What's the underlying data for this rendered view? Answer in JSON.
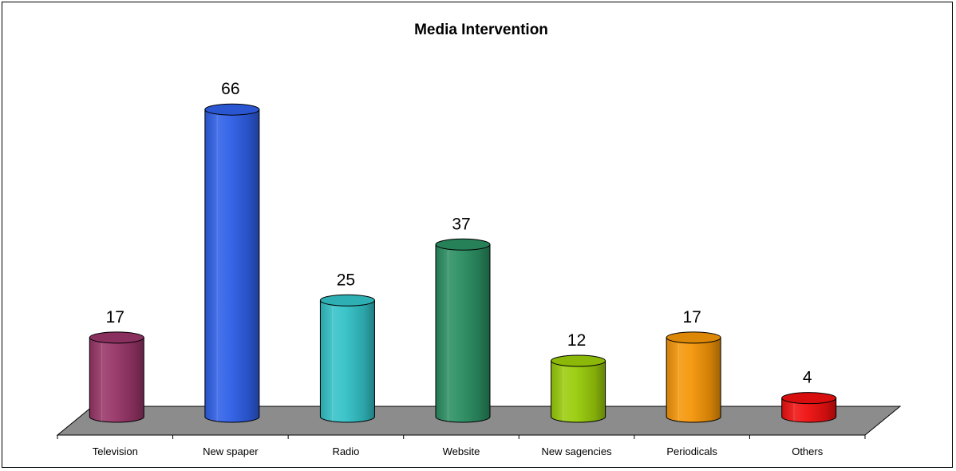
{
  "chart_data": {
    "type": "bar",
    "title": "Media Intervention",
    "categories": [
      "Television",
      "New spaper",
      "Radio",
      "Website",
      "New sagencies",
      "Periodicals",
      "Others"
    ],
    "values": [
      17,
      66,
      25,
      37,
      12,
      17,
      4
    ],
    "colors": [
      "#983568",
      "#2F5FE8",
      "#33C2C7",
      "#2A8E62",
      "#9ACC0A",
      "#F59608",
      "#F01010"
    ],
    "floor_color": "#8c8c8c",
    "xlabel": "",
    "ylabel": "",
    "grid": false,
    "legend": false
  }
}
